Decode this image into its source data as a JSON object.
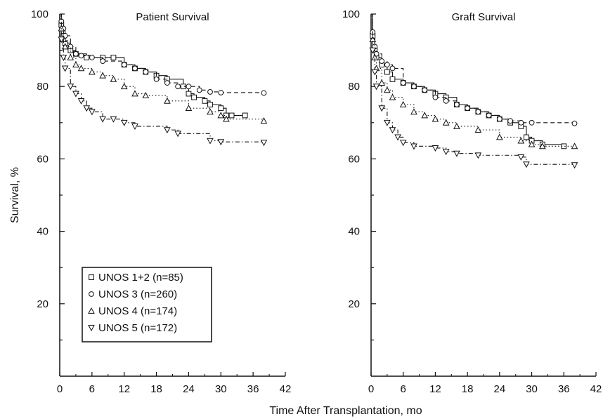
{
  "figure": {
    "shared_xlabel": "Time After Transplantation, mo",
    "shared_ylabel": "Survival, %"
  },
  "legend": {
    "placement": "bottom-left of left panel",
    "entries": [
      {
        "label": "UNOS 1+2 (n=85)",
        "marker": "square"
      },
      {
        "label": "UNOS 3 (n=260)",
        "marker": "circle"
      },
      {
        "label": "UNOS 4 (n=174)",
        "marker": "triangle-up"
      },
      {
        "label": "UNOS 5 (n=172)",
        "marker": "triangle-down"
      }
    ]
  },
  "chart_data": [
    {
      "type": "line",
      "title": "Patient Survival",
      "xlabel": "Time After Transplantation, mo",
      "ylabel": "Survival, %",
      "xlim": [
        0,
        42
      ],
      "ylim": [
        0,
        100
      ],
      "xticks": [
        0,
        6,
        12,
        18,
        24,
        30,
        36,
        42
      ],
      "yticks": [
        20,
        40,
        60,
        80,
        100
      ],
      "grid": false,
      "series": [
        {
          "name": "UNOS 1+2 (n=85)",
          "marker": "square",
          "dash": "solid",
          "points": [
            [
              0,
              100
            ],
            [
              0.3,
              97
            ],
            [
              0.7,
              94
            ],
            [
              1,
              92
            ],
            [
              2,
              90
            ],
            [
              3,
              89
            ],
            [
              5,
              88
            ],
            [
              8,
              88
            ],
            [
              10,
              88
            ],
            [
              12,
              86
            ],
            [
              14,
              85
            ],
            [
              16,
              84
            ],
            [
              18,
              83
            ],
            [
              20,
              82
            ],
            [
              23,
              80
            ],
            [
              24,
              78
            ],
            [
              25,
              77
            ],
            [
              27,
              76
            ],
            [
              28,
              75
            ],
            [
              30,
              74
            ],
            [
              31,
              72
            ],
            [
              32,
              72
            ],
            [
              34.5,
              72
            ]
          ]
        },
        {
          "name": "UNOS 3 (n=260)",
          "marker": "circle",
          "dash": "dashed",
          "points": [
            [
              0,
              100
            ],
            [
              0.3,
              98
            ],
            [
              0.7,
              96
            ],
            [
              1,
              94
            ],
            [
              2,
              91
            ],
            [
              3,
              89
            ],
            [
              4,
              88.5
            ],
            [
              6,
              88
            ],
            [
              8,
              87
            ],
            [
              12,
              86
            ],
            [
              14,
              85
            ],
            [
              16,
              84
            ],
            [
              18,
              82
            ],
            [
              20,
              81
            ],
            [
              22,
              80
            ],
            [
              24,
              80
            ],
            [
              26,
              79
            ],
            [
              28,
              78.5
            ],
            [
              30,
              78.3
            ],
            [
              38,
              78.2
            ]
          ]
        },
        {
          "name": "UNOS 4 (n=174)",
          "marker": "triangle-up",
          "dash": "dotted",
          "points": [
            [
              0,
              100
            ],
            [
              0.3,
              96
            ],
            [
              0.7,
              93
            ],
            [
              1,
              91
            ],
            [
              2,
              88
            ],
            [
              3,
              86
            ],
            [
              4,
              85
            ],
            [
              6,
              84
            ],
            [
              8,
              83
            ],
            [
              10,
              82
            ],
            [
              12,
              80
            ],
            [
              14,
              78
            ],
            [
              16,
              77.5
            ],
            [
              20,
              76
            ],
            [
              24,
              74
            ],
            [
              28,
              73
            ],
            [
              30,
              72
            ],
            [
              31,
              71
            ],
            [
              38,
              70.5
            ]
          ]
        },
        {
          "name": "UNOS 5 (n=172)",
          "marker": "triangle-down",
          "dash": "dashdot",
          "points": [
            [
              0,
              100
            ],
            [
              0.3,
              93
            ],
            [
              0.7,
              88
            ],
            [
              1,
              85
            ],
            [
              2,
              80
            ],
            [
              3,
              78
            ],
            [
              4,
              76
            ],
            [
              5,
              74
            ],
            [
              6,
              73
            ],
            [
              8,
              71
            ],
            [
              10,
              71
            ],
            [
              12,
              70
            ],
            [
              14,
              69
            ],
            [
              20,
              68
            ],
            [
              22,
              67
            ],
            [
              28,
              65
            ],
            [
              30,
              64.7
            ],
            [
              38,
              64.5
            ]
          ]
        }
      ]
    },
    {
      "type": "line",
      "title": "Graft Survival",
      "xlabel": "Time After Transplantation, mo",
      "ylabel": "Survival, %",
      "xlim": [
        0,
        42
      ],
      "ylim": [
        0,
        100
      ],
      "xticks": [
        0,
        6,
        12,
        18,
        24,
        30,
        36,
        42
      ],
      "yticks": [
        20,
        40,
        60,
        80,
        100
      ],
      "grid": false,
      "series": [
        {
          "name": "UNOS 1+2 (n=85)",
          "marker": "square",
          "dash": "solid",
          "points": [
            [
              0,
              100
            ],
            [
              0.3,
              94
            ],
            [
              0.7,
              90
            ],
            [
              1,
              88
            ],
            [
              2,
              86
            ],
            [
              3,
              84
            ],
            [
              4,
              82
            ],
            [
              6,
              81
            ],
            [
              8,
              80
            ],
            [
              10,
              79
            ],
            [
              12,
              78
            ],
            [
              14,
              77
            ],
            [
              16,
              75
            ],
            [
              18,
              74
            ],
            [
              20,
              73
            ],
            [
              22,
              72
            ],
            [
              24,
              71
            ],
            [
              26,
              70
            ],
            [
              28,
              69
            ],
            [
              29,
              66
            ],
            [
              30,
              65
            ],
            [
              32,
              64
            ],
            [
              36,
              63.5
            ]
          ]
        },
        {
          "name": "UNOS 3 (n=260)",
          "marker": "circle",
          "dash": "dashed",
          "points": [
            [
              0,
              100
            ],
            [
              0.3,
              95
            ],
            [
              0.7,
              91
            ],
            [
              1,
              89
            ],
            [
              2,
              87
            ],
            [
              3,
              86
            ],
            [
              4,
              85
            ],
            [
              6,
              81
            ],
            [
              8,
              80
            ],
            [
              10,
              79
            ],
            [
              12,
              77
            ],
            [
              14,
              76
            ],
            [
              16,
              75
            ],
            [
              18,
              74
            ],
            [
              20,
              73
            ],
            [
              22,
              72
            ],
            [
              24,
              71
            ],
            [
              26,
              70.5
            ],
            [
              28,
              70
            ],
            [
              30,
              70
            ],
            [
              38,
              69.8
            ]
          ]
        },
        {
          "name": "UNOS 4 (n=174)",
          "marker": "triangle-up",
          "dash": "dotted",
          "points": [
            [
              0,
              100
            ],
            [
              0.3,
              93
            ],
            [
              0.7,
              88
            ],
            [
              1,
              85
            ],
            [
              2,
              81
            ],
            [
              3,
              79
            ],
            [
              4,
              77
            ],
            [
              6,
              75
            ],
            [
              8,
              73
            ],
            [
              10,
              72
            ],
            [
              12,
              71
            ],
            [
              14,
              70
            ],
            [
              16,
              69
            ],
            [
              20,
              68
            ],
            [
              24,
              66
            ],
            [
              28,
              65
            ],
            [
              30,
              64
            ],
            [
              32,
              63.5
            ],
            [
              38,
              63.5
            ]
          ]
        },
        {
          "name": "UNOS 5 (n=172)",
          "marker": "triangle-down",
          "dash": "dashdot",
          "points": [
            [
              0,
              100
            ],
            [
              0.3,
              90
            ],
            [
              0.7,
              84
            ],
            [
              1,
              80
            ],
            [
              2,
              74
            ],
            [
              3,
              70
            ],
            [
              4,
              68
            ],
            [
              5,
              66
            ],
            [
              6,
              64.5
            ],
            [
              8,
              63.5
            ],
            [
              12,
              63
            ],
            [
              14,
              62
            ],
            [
              16,
              61.5
            ],
            [
              20,
              61
            ],
            [
              28,
              60.5
            ],
            [
              29,
              58.5
            ],
            [
              38,
              58.3
            ]
          ]
        }
      ]
    }
  ]
}
